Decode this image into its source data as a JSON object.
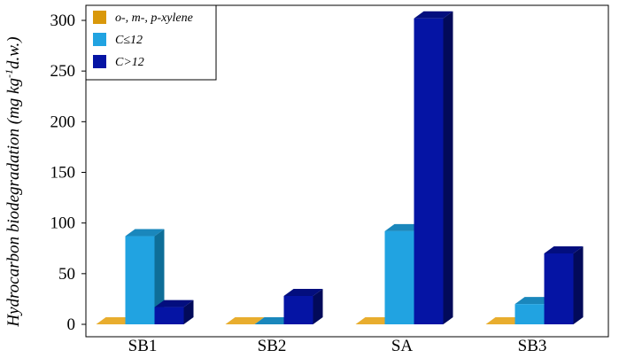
{
  "chart_data": {
    "type": "bar",
    "title": "",
    "xlabel": "",
    "ylabel": {
      "main": "Hydrocarbon biodegradation (mg kg",
      "sup": "-1",
      "tail": "d.w.)"
    },
    "categories": [
      "SB1",
      "SB2",
      "SA",
      "SB3"
    ],
    "series": [
      {
        "name": "o-, m-, p-xylene",
        "color": "#D9980A",
        "side": "#A87408",
        "top": "#E8AD2E",
        "values": [
          0,
          0,
          0,
          0
        ]
      },
      {
        "name": "C≤12",
        "color": "#21A3E1",
        "side": "#0E6E98",
        "top": "#1A87BC",
        "values": [
          87,
          0,
          92,
          20
        ]
      },
      {
        "name": "C>12",
        "color": "#0514A4",
        "side": "#020A5A",
        "top": "#030E7E",
        "values": [
          17,
          28,
          302,
          70
        ]
      }
    ],
    "ylim": [
      0,
      300
    ],
    "yticks": [
      0,
      50,
      100,
      150,
      200,
      250,
      300
    ],
    "legend_position": "top-left",
    "grid": false,
    "style": "3d-bars"
  }
}
